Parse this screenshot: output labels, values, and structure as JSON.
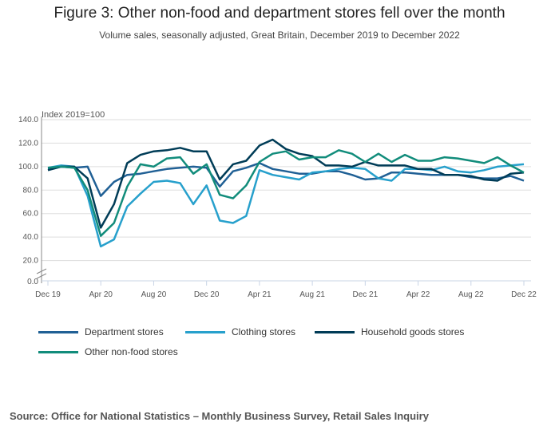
{
  "title": "Figure 3: Other non-food and department stores fell over the month",
  "subtitle": "Volume sales, seasonally adjusted, Great Britain, December 2019 to December 2022",
  "source": "Source: Office for National Statistics – Monthly Business Survey, Retail Sales Inquiry",
  "chart_data": {
    "type": "line",
    "ylabel": "Index 2019=100",
    "ylim": [
      0,
      140
    ],
    "yticks": [
      "0.0",
      "20.0",
      "40.0",
      "60.0",
      "80.0",
      "100.0",
      "120.0",
      "140.0"
    ],
    "ytick_values": [
      0,
      20,
      40,
      60,
      80,
      100,
      120,
      140
    ],
    "xtick_labels": [
      "Dec 19",
      "Apr 20",
      "Aug 20",
      "Dec 20",
      "Apr 21",
      "Aug 21",
      "Dec 21",
      "Apr 22",
      "Aug 22",
      "Dec 22"
    ],
    "xtick_months": [
      0,
      4,
      8,
      12,
      16,
      20,
      24,
      28,
      32,
      36
    ],
    "n_months": 37,
    "grid": true,
    "legend_position": "bottom",
    "series": [
      {
        "name": "Department stores",
        "color": "#206095",
        "values": [
          98,
          100,
          99,
          100,
          75,
          87,
          93,
          94,
          96,
          98,
          99,
          100,
          99,
          83,
          96,
          99,
          103,
          98,
          96,
          94,
          94,
          96,
          96,
          93,
          89,
          90,
          95,
          95,
          94,
          93,
          93,
          93,
          91,
          90,
          90,
          92,
          88
        ]
      },
      {
        "name": "Clothing stores",
        "color": "#27a0cc",
        "values": [
          99,
          101,
          100,
          75,
          32,
          38,
          66,
          77,
          87,
          88,
          86,
          68,
          84,
          54,
          52,
          58,
          97,
          93,
          91,
          89,
          95,
          96,
          98,
          99,
          98,
          90,
          88,
          98,
          98,
          97,
          100,
          96,
          95,
          97,
          100,
          101,
          102
        ]
      },
      {
        "name": "Household goods stores",
        "color": "#003c57",
        "values": [
          97,
          100,
          100,
          90,
          48,
          68,
          103,
          110,
          113,
          114,
          116,
          113,
          113,
          89,
          102,
          105,
          118,
          123,
          115,
          111,
          109,
          101,
          101,
          100,
          104,
          101,
          101,
          101,
          98,
          98,
          93,
          93,
          92,
          89,
          88,
          94,
          95
        ]
      },
      {
        "name": "Other non-food stores",
        "color": "#118c7b",
        "values": [
          99,
          100,
          99,
          80,
          41,
          52,
          83,
          102,
          100,
          107,
          108,
          94,
          102,
          76,
          73,
          84,
          104,
          111,
          113,
          106,
          108,
          108,
          114,
          111,
          104,
          111,
          104,
          110,
          105,
          105,
          108,
          107,
          105,
          103,
          108,
          101,
          95
        ]
      }
    ]
  }
}
